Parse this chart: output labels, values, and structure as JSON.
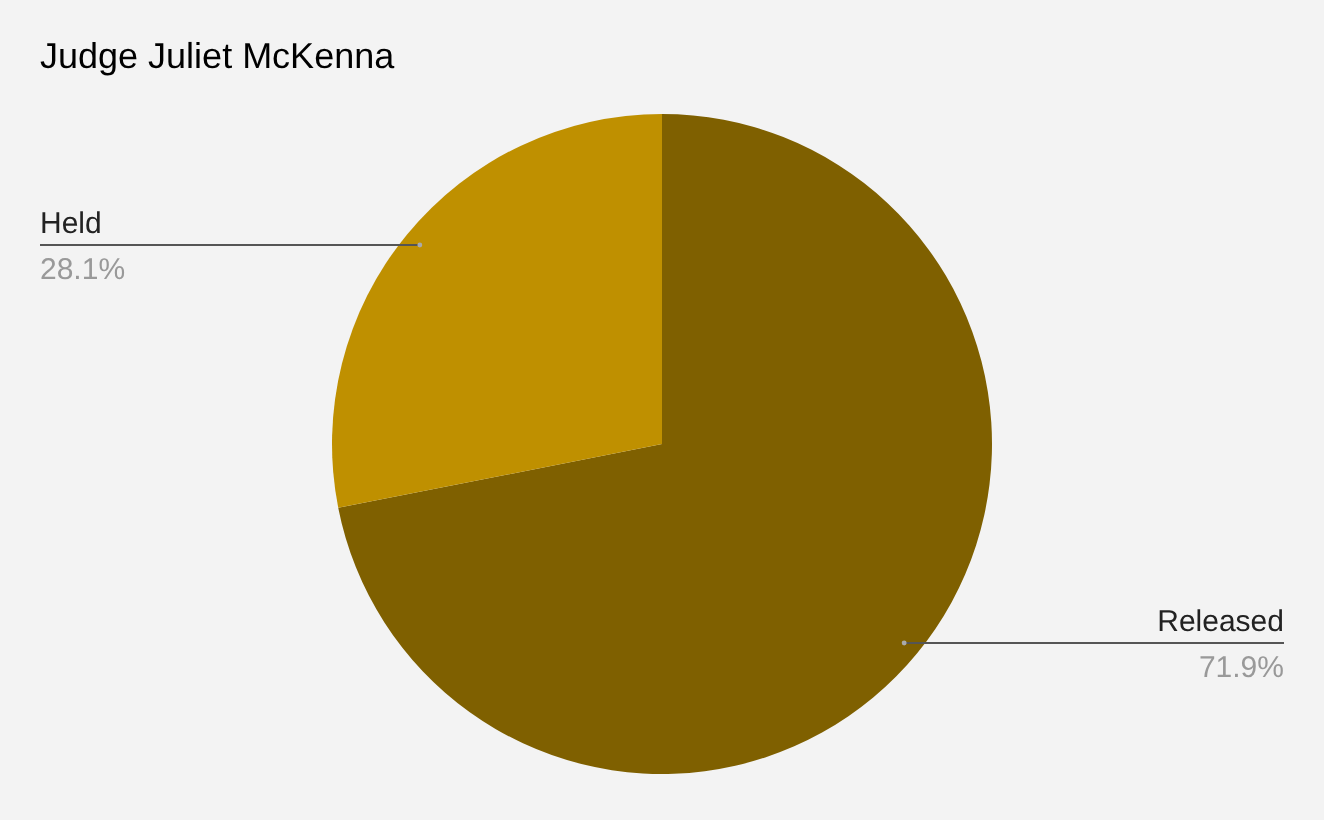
{
  "chart_data": {
    "type": "pie",
    "title": "Judge Juliet McKenna",
    "categories": [
      "Released",
      "Held"
    ],
    "values": [
      71.9,
      28.1
    ],
    "colors": [
      "#7f6000",
      "#bf9000"
    ],
    "value_labels": [
      "71.9%",
      "28.1%"
    ],
    "legend": false
  }
}
